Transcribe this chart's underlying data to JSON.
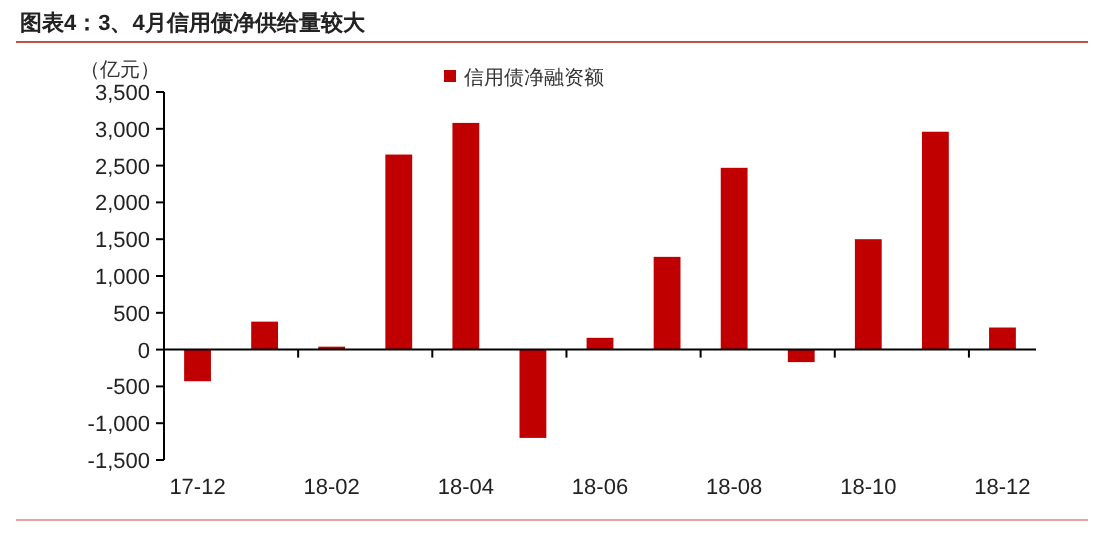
{
  "chart_data": {
    "type": "bar",
    "title": "图表4：3、4月信用债净供给量较大",
    "ylabel": "（亿元）",
    "categories": [
      "17-12",
      null,
      "18-02",
      null,
      "18-04",
      null,
      "18-06",
      null,
      "18-08",
      null,
      "18-10",
      null,
      "18-12"
    ],
    "series": [
      {
        "name": "信用债净融资额",
        "color": "#c00000",
        "values": [
          -430,
          380,
          40,
          2650,
          3080,
          -1200,
          160,
          1260,
          2470,
          -170,
          1500,
          2960,
          300
        ]
      }
    ],
    "ylim": [
      -1500,
      3500
    ],
    "yticks": [
      {
        "value": -1500,
        "label": "-1,500"
      },
      {
        "value": -1000,
        "label": "-1,000"
      },
      -500,
      0,
      500,
      {
        "value": 1000,
        "label": "1,000"
      },
      {
        "value": 1500,
        "label": "1,500"
      },
      {
        "value": 2000,
        "label": "2,000"
      },
      {
        "value": 2500,
        "label": "2,500"
      },
      {
        "value": 3000,
        "label": "3,000"
      },
      {
        "value": 3500,
        "label": "3,500"
      }
    ],
    "legend": "top"
  }
}
